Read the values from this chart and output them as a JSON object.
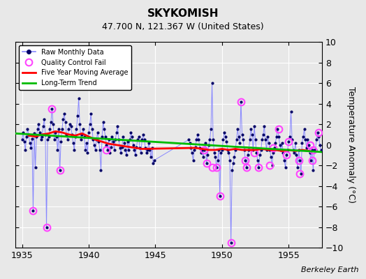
{
  "title": "SKYKOMISH",
  "subtitle": "47.700 N, 121.367 W (United States)",
  "ylabel": "Temperature Anomaly (°C)",
  "credit": "Berkeley Earth",
  "xlim": [
    1934.5,
    1957.5
  ],
  "ylim": [
    -10,
    10
  ],
  "yticks": [
    -10,
    -8,
    -6,
    -4,
    -2,
    0,
    2,
    4,
    6,
    8,
    10
  ],
  "xticks": [
    1935,
    1940,
    1945,
    1950,
    1955
  ],
  "background_color": "#e8e8e8",
  "raw_dot_color": "#000066",
  "raw_line_color": "#8888ff",
  "qc_color": "#ff44ff",
  "ma_color": "red",
  "trend_color": "#00bb00",
  "raw_data_x": [
    1935.0,
    1935.083,
    1935.167,
    1935.25,
    1935.333,
    1935.417,
    1935.5,
    1935.583,
    1935.667,
    1935.75,
    1935.833,
    1935.917,
    1936.0,
    1936.083,
    1936.167,
    1936.25,
    1936.333,
    1936.417,
    1936.5,
    1936.583,
    1936.667,
    1936.75,
    1936.833,
    1936.917,
    1937.0,
    1937.083,
    1937.167,
    1937.25,
    1937.333,
    1937.417,
    1937.5,
    1937.583,
    1937.667,
    1937.75,
    1937.833,
    1937.917,
    1938.0,
    1938.083,
    1938.167,
    1938.25,
    1938.333,
    1938.417,
    1938.5,
    1938.583,
    1938.667,
    1938.75,
    1938.833,
    1938.917,
    1939.0,
    1939.083,
    1939.167,
    1939.25,
    1939.333,
    1939.417,
    1939.5,
    1939.583,
    1939.667,
    1939.75,
    1939.833,
    1939.917,
    1940.0,
    1940.083,
    1940.167,
    1940.25,
    1940.333,
    1940.417,
    1940.5,
    1940.583,
    1940.667,
    1940.75,
    1940.833,
    1940.917,
    1941.0,
    1941.083,
    1941.167,
    1941.25,
    1941.333,
    1941.417,
    1941.5,
    1941.583,
    1941.667,
    1941.75,
    1941.833,
    1941.917,
    1942.0,
    1942.083,
    1942.167,
    1942.25,
    1942.333,
    1942.417,
    1942.5,
    1942.583,
    1942.667,
    1942.75,
    1942.833,
    1942.917,
    1943.0,
    1943.083,
    1943.167,
    1943.25,
    1943.333,
    1943.417,
    1943.5,
    1943.583,
    1943.667,
    1943.75,
    1943.833,
    1943.917,
    1944.0,
    1944.083,
    1944.167,
    1944.25,
    1944.333,
    1944.417,
    1944.5,
    1944.583,
    1944.667,
    1944.75,
    1944.833,
    1944.917,
    1947.5,
    1947.583,
    1947.667,
    1947.75,
    1947.833,
    1947.917,
    1948.0,
    1948.083,
    1948.167,
    1948.25,
    1948.333,
    1948.417,
    1948.5,
    1948.583,
    1948.667,
    1948.75,
    1948.833,
    1948.917,
    1949.0,
    1949.083,
    1949.167,
    1949.25,
    1949.333,
    1949.417,
    1949.5,
    1949.583,
    1949.667,
    1949.75,
    1949.833,
    1949.917,
    1950.0,
    1950.083,
    1950.167,
    1950.25,
    1950.333,
    1950.417,
    1950.5,
    1950.583,
    1950.667,
    1950.75,
    1950.833,
    1950.917,
    1951.0,
    1951.083,
    1951.167,
    1951.25,
    1951.333,
    1951.417,
    1951.5,
    1951.583,
    1951.667,
    1951.75,
    1951.833,
    1951.917,
    1952.0,
    1952.083,
    1952.167,
    1952.25,
    1952.333,
    1952.417,
    1952.5,
    1952.583,
    1952.667,
    1952.75,
    1952.833,
    1952.917,
    1953.0,
    1953.083,
    1953.167,
    1953.25,
    1953.333,
    1953.417,
    1953.5,
    1953.583,
    1953.667,
    1953.75,
    1953.833,
    1953.917,
    1954.0,
    1954.083,
    1954.167,
    1954.25,
    1954.333,
    1954.417,
    1954.5,
    1954.583,
    1954.667,
    1954.75,
    1954.833,
    1954.917,
    1955.0,
    1955.083,
    1955.167,
    1955.25,
    1955.333,
    1955.417,
    1955.5,
    1955.583,
    1955.667,
    1955.75,
    1955.833,
    1955.917,
    1956.0,
    1956.083,
    1956.167,
    1956.25,
    1956.333,
    1956.417,
    1956.5,
    1956.583,
    1956.667,
    1956.75,
    1956.833,
    1956.917,
    1957.0,
    1957.083,
    1957.167,
    1957.25,
    1957.333,
    1957.417
  ],
  "raw_data_y": [
    0.5,
    1.2,
    0.3,
    -0.5,
    0.8,
    1.5,
    1.0,
    0.2,
    -0.3,
    0.6,
    -6.4,
    1.1,
    -2.2,
    0.8,
    1.5,
    2.0,
    1.2,
    0.5,
    0.8,
    1.8,
    2.5,
    1.0,
    -8.0,
    0.5,
    0.8,
    1.5,
    2.2,
    3.5,
    2.0,
    0.5,
    1.2,
    0.8,
    -0.5,
    1.5,
    -2.5,
    0.3,
    1.5,
    2.5,
    3.0,
    2.2,
    1.0,
    0.5,
    1.5,
    2.0,
    1.8,
    1.0,
    0.2,
    -0.5,
    0.8,
    1.5,
    2.8,
    4.5,
    2.0,
    0.5,
    1.0,
    1.5,
    0.8,
    -0.5,
    0.2,
    -0.8,
    1.2,
    2.0,
    3.0,
    1.5,
    0.5,
    0.0,
    -0.5,
    0.5,
    1.2,
    0.3,
    -0.5,
    -2.5,
    0.8,
    2.2,
    1.5,
    0.8,
    0.0,
    -0.5,
    0.5,
    -0.8,
    -0.2,
    0.8,
    0.3,
    -0.5,
    0.5,
    1.2,
    1.8,
    0.5,
    -0.3,
    -0.8,
    -0.2,
    0.8,
    0.2,
    -0.5,
    -1.0,
    0.3,
    -0.5,
    0.5,
    1.2,
    0.8,
    0.0,
    -0.5,
    -1.0,
    -0.2,
    0.5,
    0.8,
    -0.3,
    -0.8,
    0.5,
    1.0,
    0.5,
    -0.3,
    -0.8,
    -0.5,
    0.2,
    -0.5,
    -1.2,
    -0.3,
    -1.8,
    -1.5,
    0.5,
    0.2,
    -0.3,
    -0.8,
    -1.5,
    -0.5,
    -0.2,
    0.5,
    1.0,
    0.5,
    -0.3,
    -0.8,
    -0.5,
    -1.2,
    -0.5,
    0.2,
    -1.8,
    -1.0,
    0.0,
    0.5,
    1.5,
    6.0,
    0.5,
    -0.8,
    -1.2,
    -2.2,
    -1.5,
    -0.5,
    -5.0,
    -0.8,
    -0.5,
    0.5,
    1.2,
    0.8,
    0.3,
    -0.5,
    -0.8,
    -1.5,
    -9.5,
    -2.5,
    -1.8,
    -1.2,
    -0.5,
    0.5,
    1.5,
    0.8,
    0.2,
    4.2,
    1.0,
    0.5,
    -0.5,
    -1.5,
    -2.2,
    -1.0,
    -0.5,
    0.5,
    1.5,
    1.0,
    -0.5,
    1.8,
    0.5,
    -0.8,
    -1.5,
    -2.2,
    -1.0,
    -0.5,
    0.5,
    1.0,
    1.8,
    0.5,
    -0.5,
    0.8,
    0.2,
    -0.5,
    -1.2,
    -2.0,
    -0.8,
    -0.3,
    0.2,
    0.8,
    1.5,
    0.8,
    0.0,
    -0.5,
    0.2,
    -0.8,
    -1.5,
    -2.2,
    -1.0,
    -0.5,
    0.3,
    0.8,
    3.2,
    0.5,
    -0.5,
    -0.8,
    0.2,
    -1.0,
    -2.2,
    -0.5,
    -1.5,
    -2.8,
    0.2,
    0.8,
    1.5,
    0.5,
    -0.3,
    0.5,
    0.0,
    -0.8,
    -1.5,
    -0.5,
    -2.5,
    -0.5,
    -0.5,
    0.5,
    1.2,
    0.8,
    0.0,
    -0.5
  ],
  "qc_x": [
    1935.833,
    1936.833,
    1937.25,
    1937.833,
    1941.333,
    1948.667,
    1948.833,
    1949.25,
    1949.583,
    1949.833,
    1950.667,
    1951.417,
    1951.75,
    1951.833,
    1952.417,
    1952.75,
    1953.583,
    1953.833,
    1954.25,
    1954.833,
    1955.0,
    1955.75,
    1955.833,
    1956.583,
    1956.75,
    1956.833,
    1957.25
  ],
  "qc_y": [
    -6.4,
    -8.0,
    3.5,
    -2.5,
    -0.5,
    -0.5,
    -1.8,
    -2.2,
    -2.2,
    -5.0,
    -9.5,
    4.2,
    -1.5,
    -2.2,
    -0.8,
    -2.2,
    -2.0,
    -0.3,
    1.5,
    -1.0,
    0.3,
    -1.5,
    -2.8,
    0.0,
    -1.5,
    -0.5,
    1.2
  ],
  "ma_x": [
    1935.5,
    1936.0,
    1936.5,
    1937.0,
    1937.5,
    1938.0,
    1938.5,
    1939.0,
    1939.5,
    1940.0,
    1940.5,
    1941.0,
    1941.5,
    1942.0,
    1942.5,
    1943.0,
    1943.5,
    1944.0,
    1948.0,
    1948.5,
    1949.0,
    1949.5,
    1950.0,
    1950.5,
    1951.0,
    1951.5,
    1952.0,
    1952.5,
    1953.0,
    1953.5,
    1954.0,
    1954.5,
    1955.0,
    1955.5,
    1956.0,
    1956.5
  ],
  "ma_y": [
    0.9,
    0.8,
    1.0,
    1.1,
    1.3,
    1.2,
    1.0,
    0.9,
    1.1,
    0.8,
    0.5,
    0.3,
    0.1,
    0.0,
    -0.1,
    -0.2,
    -0.3,
    -0.4,
    -0.3,
    -0.4,
    -0.5,
    -0.5,
    -0.4,
    -0.5,
    -0.4,
    -0.5,
    -0.5,
    -0.5,
    -0.4,
    -0.5,
    -0.5,
    -0.6,
    -0.5,
    -0.6,
    -0.5,
    -0.6
  ],
  "trend_x": [
    1934.5,
    1957.5
  ],
  "trend_y": [
    1.1,
    -0.7
  ]
}
